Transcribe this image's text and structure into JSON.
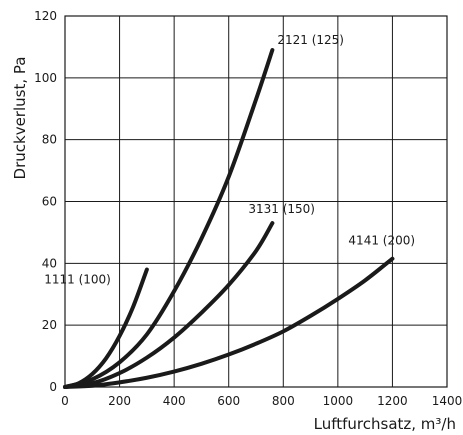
{
  "chart_data": {
    "type": "line",
    "title": "",
    "xlabel": "Luftfurchsatz, m³/h",
    "ylabel": "Druckverlust, Pa",
    "xlim": [
      0,
      1400
    ],
    "ylim": [
      0,
      120
    ],
    "xticks": [
      0,
      200,
      400,
      600,
      800,
      1000,
      1200,
      1400
    ],
    "yticks": [
      0,
      20,
      40,
      60,
      80,
      100,
      120
    ],
    "grid": true,
    "line_color": "#1a1a1a",
    "series": [
      {
        "name": "1111 (100)",
        "x": [
          0,
          50,
          100,
          150,
          200,
          250,
          300
        ],
        "y": [
          0,
          1.2,
          4.2,
          9.2,
          16.5,
          26,
          38
        ]
      },
      {
        "name": "2121 (125)",
        "x": [
          0,
          100,
          200,
          300,
          400,
          500,
          600,
          700,
          760
        ],
        "y": [
          0,
          2.5,
          8,
          17,
          31,
          48,
          68,
          93,
          109
        ]
      },
      {
        "name": "3131 (150)",
        "x": [
          0,
          100,
          200,
          300,
          400,
          500,
          600,
          700,
          760
        ],
        "y": [
          0,
          1.2,
          4.5,
          9.5,
          16,
          24,
          33,
          44,
          53
        ]
      },
      {
        "name": "4141 (200)",
        "x": [
          0,
          100,
          200,
          300,
          400,
          500,
          600,
          700,
          800,
          900,
          1000,
          1100,
          1200
        ],
        "y": [
          0,
          0.4,
          1.5,
          3,
          5,
          7.5,
          10.5,
          14,
          18,
          23,
          28.5,
          34.5,
          41.5
        ]
      }
    ]
  }
}
